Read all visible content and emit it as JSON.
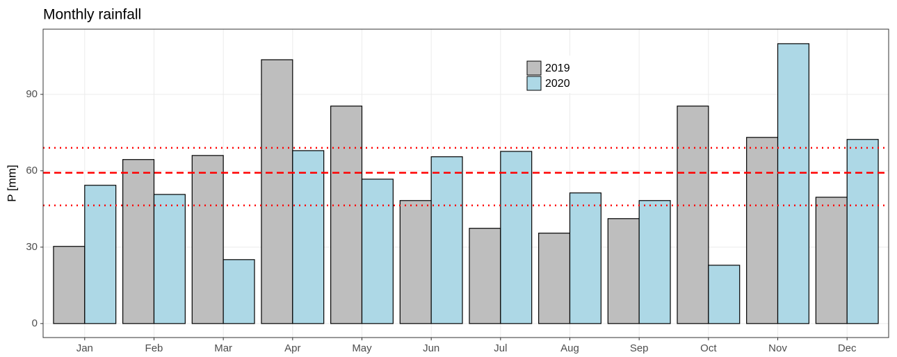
{
  "chart_data": {
    "type": "bar",
    "title": "Monthly rainfall",
    "ylabel": "P [mm]",
    "categories": [
      "Jan",
      "Feb",
      "Mar",
      "Apr",
      "May",
      "Jun",
      "Jul",
      "Aug",
      "Sep",
      "Oct",
      "Nov",
      "Dec"
    ],
    "series": [
      {
        "name": "2019",
        "color": "#bebebe",
        "values": [
          30.3,
          64.4,
          66.0,
          103.6,
          85.4,
          48.3,
          37.4,
          35.5,
          41.2,
          85.4,
          73.1,
          49.6
        ]
      },
      {
        "name": "2020",
        "color": "#add8e6",
        "values": [
          54.3,
          50.7,
          25.1,
          67.9,
          56.7,
          65.5,
          67.6,
          51.3,
          48.3,
          22.9,
          109.9,
          72.3
        ]
      }
    ],
    "hlines": [
      {
        "value": 59.2,
        "style": "dashed",
        "color": "#ff0000"
      },
      {
        "value": 69.0,
        "style": "dotted",
        "color": "#ff0000"
      },
      {
        "value": 46.4,
        "style": "dotted",
        "color": "#ff0000"
      }
    ],
    "ylim": [
      -5.5,
      115.6
    ],
    "yticks": [
      0,
      30,
      60,
      90
    ],
    "grid": true,
    "legend_position": "top"
  }
}
